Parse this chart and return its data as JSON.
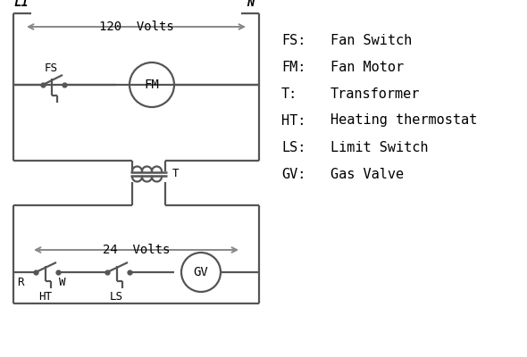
{
  "bg_color": "#ffffff",
  "line_color": "#555555",
  "arrow_color": "#888888",
  "text_color": "#000000",
  "legend_items": [
    [
      "FS:",
      "Fan Switch"
    ],
    [
      "FM:",
      "Fan Motor"
    ],
    [
      "T:",
      "Transformer"
    ],
    [
      "HT:",
      "Heating thermostat"
    ],
    [
      "LS:",
      "Limit Switch"
    ],
    [
      "GV:",
      "Gas Valve"
    ]
  ]
}
